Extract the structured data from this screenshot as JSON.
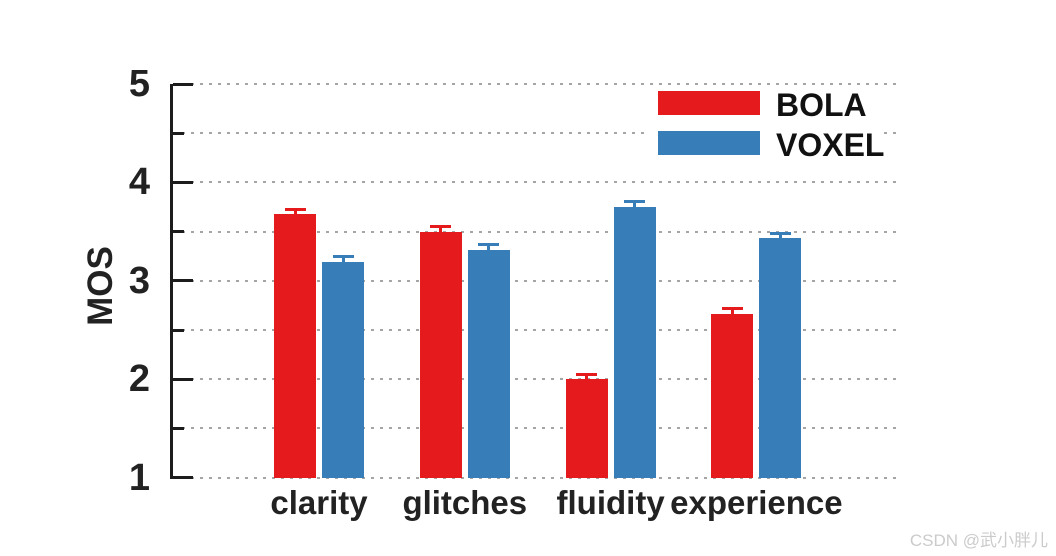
{
  "watermark": {
    "text": "CSDN @武小胖儿"
  },
  "colors": {
    "bola_red": "#e41a1c",
    "voxel_blue": "#377eb8",
    "grid": "#a5a5a5",
    "axis": "#1c1c1c",
    "watermark_gray": "#cbcbcb"
  },
  "chart_data": {
    "type": "bar",
    "title": "",
    "xlabel": "",
    "ylabel": "MOS",
    "categories": [
      "clarity",
      "glitches",
      "fluidity",
      "experience"
    ],
    "series": [
      {
        "name": "BOLA",
        "color": "#e41a1c",
        "values": [
          3.68,
          3.5,
          2.0,
          2.66
        ],
        "errors": [
          0.05,
          0.06,
          0.05,
          0.06
        ]
      },
      {
        "name": "VOXEL",
        "color": "#377eb8",
        "values": [
          3.19,
          3.31,
          3.75,
          3.43
        ],
        "errors": [
          0.06,
          0.06,
          0.06,
          0.06
        ]
      }
    ],
    "ylim": [
      1,
      5
    ],
    "yticks": [
      1,
      2,
      3,
      4,
      5
    ],
    "minor_ticks": [
      1.5,
      2.5,
      3.5,
      4.5
    ],
    "gridlines": "dotted horizontal every 0.5 from 1 to 5",
    "error_bars": true,
    "legend_position": "top-right"
  }
}
